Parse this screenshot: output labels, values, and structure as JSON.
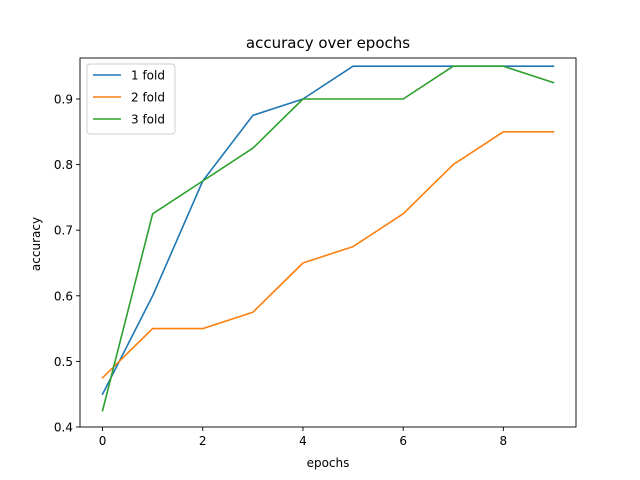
{
  "chart_data": {
    "type": "line",
    "title": "accuracy over epochs",
    "xlabel": "epochs",
    "ylabel": "accuracy",
    "x": [
      0,
      1,
      2,
      3,
      4,
      5,
      6,
      7,
      8,
      9
    ],
    "xlim": [
      -0.45,
      9.45
    ],
    "ylim": [
      0.4,
      0.9625
    ],
    "xticks": [
      0,
      2,
      4,
      6,
      8
    ],
    "yticks": [
      0.4,
      0.5,
      0.6,
      0.7,
      0.8,
      0.9
    ],
    "xtick_labels": [
      "0",
      "2",
      "4",
      "6",
      "8"
    ],
    "ytick_labels": [
      "0.4",
      "0.5",
      "0.6",
      "0.7",
      "0.8",
      "0.9"
    ],
    "grid": false,
    "legend_position": "top-left",
    "series": [
      {
        "name": "1 fold",
        "color": "#1f77b4",
        "values": [
          0.45,
          0.6,
          0.775,
          0.875,
          0.9,
          0.95,
          0.95,
          0.95,
          0.95,
          0.95
        ]
      },
      {
        "name": "2 fold",
        "color": "#ff7f0e",
        "values": [
          0.475,
          0.55,
          0.55,
          0.575,
          0.65,
          0.675,
          0.725,
          0.8,
          0.85,
          0.85
        ]
      },
      {
        "name": "3 fold",
        "color": "#2ca02c",
        "values": [
          0.425,
          0.725,
          0.775,
          0.825,
          0.9,
          0.9,
          0.9,
          0.95,
          0.95,
          0.925
        ]
      }
    ]
  }
}
